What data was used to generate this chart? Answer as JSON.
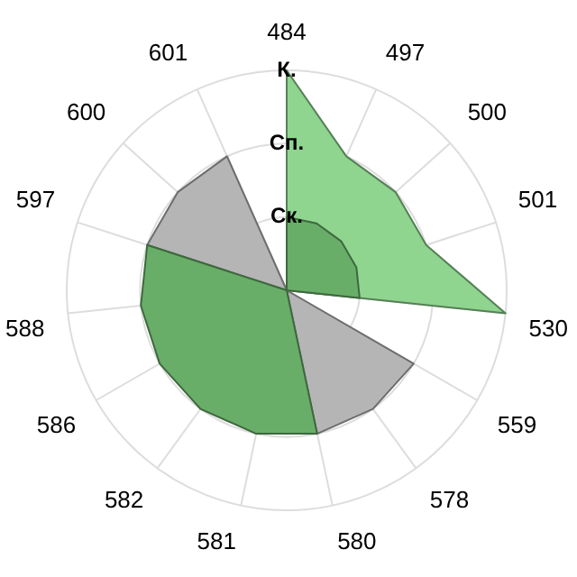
{
  "chart_data": {
    "type": "radar",
    "categories": [
      "484",
      "497",
      "500",
      "501",
      "530",
      "559",
      "578",
      "580",
      "581",
      "582",
      "586",
      "588",
      "597",
      "600",
      "601"
    ],
    "series": [
      {
        "color": "#8fd48f",
        "values": [
          3,
          2,
          2,
          2,
          3,
          0,
          0,
          0,
          0,
          0,
          0,
          0,
          0,
          0,
          0
        ]
      },
      {
        "color": "#b5b5b5",
        "values": [
          0,
          0,
          0,
          0,
          0,
          2,
          2,
          2,
          0,
          0,
          0,
          0,
          2,
          2,
          2
        ]
      },
      {
        "color": "#68ae68",
        "values": [
          1,
          1,
          1,
          1,
          1,
          0,
          0,
          2,
          2,
          2,
          2,
          2,
          2,
          0,
          0
        ]
      }
    ],
    "ylim": [
      0,
      3
    ],
    "yticks": [
      {
        "value": 1,
        "label": "Ск."
      },
      {
        "value": 2,
        "label": "Сп."
      },
      {
        "value": 3,
        "label": "К."
      }
    ],
    "grid": true,
    "legend": false,
    "marker": "none"
  }
}
